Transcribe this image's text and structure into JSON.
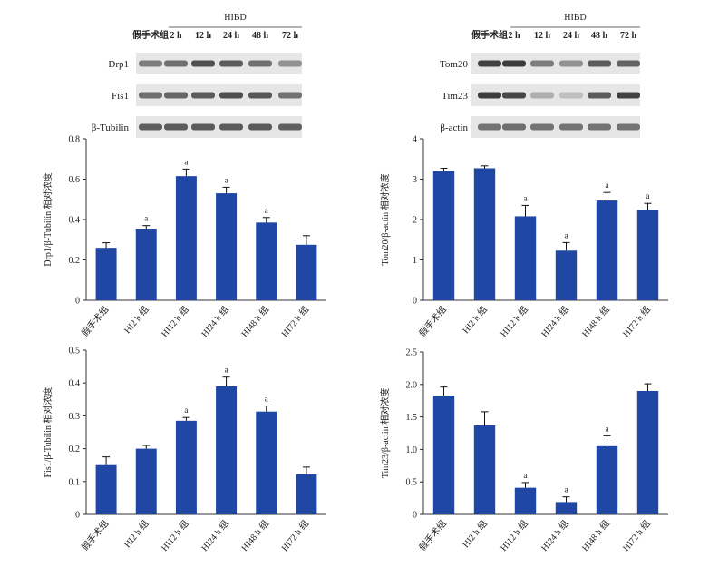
{
  "blots": [
    {
      "id": "left",
      "group_header": "HIBD",
      "lanes": [
        "假手术组",
        "2 h",
        "12 h",
        "24 h",
        "48 h",
        "72 h"
      ],
      "bands": [
        {
          "label": "Drp1",
          "intensity": [
            0.55,
            0.62,
            0.78,
            0.72,
            0.62,
            0.45
          ]
        },
        {
          "label": "Fis1",
          "intensity": [
            0.62,
            0.66,
            0.72,
            0.78,
            0.74,
            0.6
          ]
        },
        {
          "label": "β-Tubilin",
          "intensity": [
            0.7,
            0.72,
            0.72,
            0.72,
            0.72,
            0.7
          ]
        }
      ]
    },
    {
      "id": "right",
      "group_header": "HIBD",
      "lanes": [
        "假手术组",
        "2 h",
        "12 h",
        "24 h",
        "48 h",
        "72 h"
      ],
      "bands": [
        {
          "label": "Tom20",
          "intensity": [
            0.85,
            0.88,
            0.55,
            0.45,
            0.72,
            0.68
          ]
        },
        {
          "label": "Tim23",
          "intensity": [
            0.88,
            0.82,
            0.3,
            0.22,
            0.72,
            0.85
          ]
        },
        {
          "label": "β-actin",
          "intensity": [
            0.6,
            0.62,
            0.6,
            0.6,
            0.6,
            0.6
          ]
        }
      ]
    }
  ],
  "chart_data": [
    {
      "type": "bar",
      "ylabel": "Drp1/β-Tubilin 相对浓度",
      "categories": [
        "假手术组",
        "HI2 h 组",
        "HI12 h 组",
        "HI24 h 组",
        "HI48 h 组",
        "HI72 h 组"
      ],
      "values": [
        0.26,
        0.355,
        0.615,
        0.53,
        0.385,
        0.275
      ],
      "errors": [
        0.025,
        0.015,
        0.035,
        0.03,
        0.025,
        0.045
      ],
      "annotations": [
        "",
        "a",
        "a",
        "a",
        "a",
        ""
      ],
      "ylim": [
        0,
        0.8
      ],
      "yticks": [
        "0",
        "0.2",
        "0.4",
        "0.6",
        "0.8"
      ],
      "bar_color": "#1f47a3"
    },
    {
      "type": "bar",
      "ylabel": "Tom20/β-actin 相对浓度",
      "categories": [
        "假手术组",
        "HI2 h 组",
        "HI12 h 组",
        "HI24 h 组",
        "HI48 h 组",
        "HI72 h 组"
      ],
      "values": [
        3.2,
        3.27,
        2.08,
        1.23,
        2.47,
        2.23
      ],
      "errors": [
        0.07,
        0.06,
        0.27,
        0.2,
        0.2,
        0.17
      ],
      "annotations": [
        "",
        "",
        "a",
        "a",
        "a",
        "a"
      ],
      "ylim": [
        0,
        4
      ],
      "yticks": [
        "0",
        "1",
        "2",
        "3",
        "4"
      ],
      "bar_color": "#1f47a3"
    },
    {
      "type": "bar",
      "ylabel": "Fis1/β-Tubilin 相对浓度",
      "categories": [
        "假手术组",
        "HI2 h 组",
        "HI12 h 组",
        "HI24 h 组",
        "HI48 h 组",
        "HI72 h 组"
      ],
      "values": [
        0.15,
        0.2,
        0.285,
        0.39,
        0.313,
        0.122
      ],
      "errors": [
        0.025,
        0.01,
        0.01,
        0.028,
        0.017,
        0.022
      ],
      "annotations": [
        "",
        "",
        "a",
        "a",
        "a",
        ""
      ],
      "ylim": [
        0,
        0.5
      ],
      "yticks": [
        "0",
        "0.1",
        "0.2",
        "0.3",
        "0.4",
        "0.5"
      ],
      "bar_color": "#1f47a3"
    },
    {
      "type": "bar",
      "ylabel": "Tim23/β-actin 相对浓度",
      "categories": [
        "假手术组",
        "HI2 h 组",
        "HI12 h 组",
        "HI24 h 组",
        "HI48 h 组",
        "HI72 h 组"
      ],
      "values": [
        1.83,
        1.37,
        0.41,
        0.19,
        1.05,
        1.9
      ],
      "errors": [
        0.13,
        0.21,
        0.08,
        0.08,
        0.16,
        0.11
      ],
      "annotations": [
        "",
        "",
        "a",
        "a",
        "a",
        ""
      ],
      "ylim": [
        0,
        2.5
      ],
      "yticks": [
        "0",
        "0.5",
        "1.0",
        "1.5",
        "2.0",
        "2.5"
      ],
      "bar_color": "#1f47a3"
    }
  ]
}
